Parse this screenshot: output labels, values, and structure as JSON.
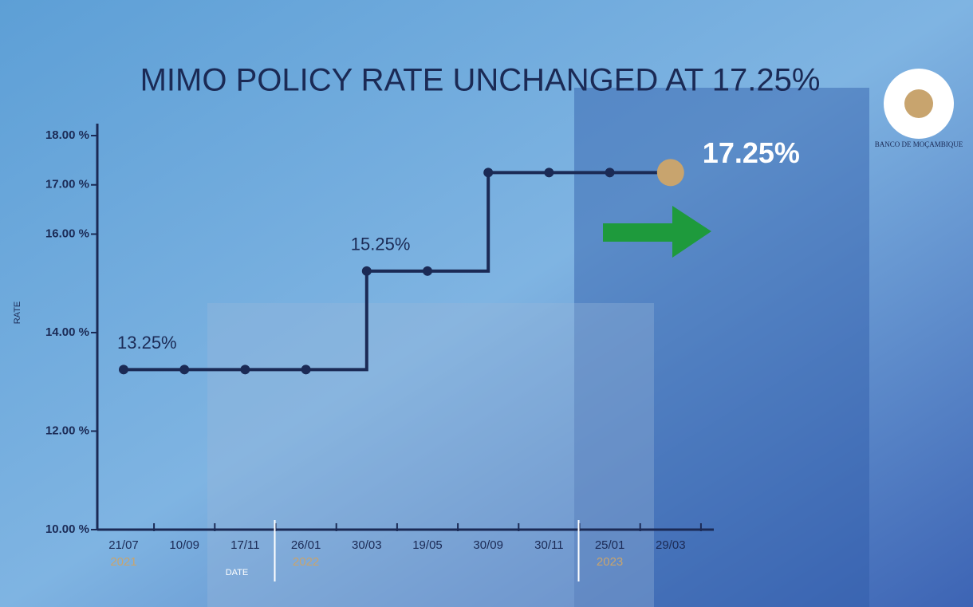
{
  "chart_data": {
    "type": "step-line",
    "title": "MIMO POLICY RATE UNCHANGED AT 17.25%",
    "logo": "BANCO DE MOÇAMBIQUE",
    "y_label": "RATE",
    "x_label": "DATE",
    "categories": [
      "21/07",
      "10/09",
      "17/11",
      "26/01",
      "30/03",
      "19/05",
      "30/09",
      "30/11",
      "25/01",
      "29/03"
    ],
    "years": [
      {
        "index": 0,
        "label": "2021"
      },
      {
        "index": 3,
        "label": "2022"
      },
      {
        "index": 8,
        "label": "2023"
      }
    ],
    "series": [
      {
        "name": "Policy rate",
        "color": "#1b2a55",
        "values": [
          13.25,
          13.25,
          13.25,
          13.25,
          15.25,
          15.25,
          17.25,
          17.25,
          17.25,
          17.25
        ],
        "value_labels": [
          "13.25%",
          null,
          null,
          null,
          "15.25%",
          null,
          null,
          null,
          null,
          "17.25%"
        ]
      }
    ],
    "highlight_color": "#c8a46e",
    "ylim": [
      10,
      18
    ],
    "yticks": [
      {
        "value": 10,
        "label": "10.00 %"
      },
      {
        "value": 12,
        "label": "12.00 %"
      },
      {
        "value": 14,
        "label": "14.00 %"
      },
      {
        "value": 16,
        "label": "16.00 %"
      },
      {
        "value": 17,
        "label": "17.00 %"
      },
      {
        "value": 18,
        "label": "18.00 %"
      }
    ]
  }
}
